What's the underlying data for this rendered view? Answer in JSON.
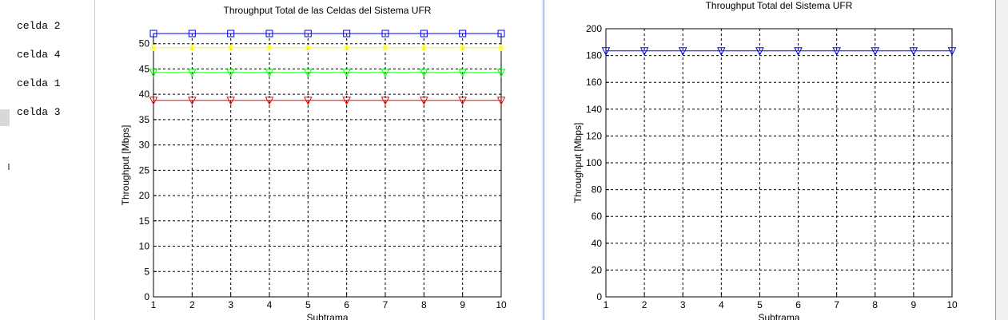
{
  "cell_list": [
    "celda 2",
    "celda 4",
    "celda 1",
    "celda 3"
  ],
  "chart_data": [
    {
      "type": "line",
      "title": "Throughput Total de las Celdas del Sistema UFR",
      "xlabel": "Subtrama",
      "ylabel": "Throughput [Mbps]",
      "x": [
        1,
        2,
        3,
        4,
        5,
        6,
        7,
        8,
        9,
        10
      ],
      "xlim": [
        1,
        10
      ],
      "ylim": [
        0,
        52
      ],
      "xticks": [
        1,
        2,
        3,
        4,
        5,
        6,
        7,
        8,
        9,
        10
      ],
      "yticks": [
        0,
        5,
        10,
        15,
        20,
        25,
        30,
        35,
        40,
        45,
        50
      ],
      "grid": true,
      "series": [
        {
          "color": "#0000ff",
          "marker": "square",
          "values": [
            52,
            52,
            52,
            52,
            52,
            52,
            52,
            52,
            52,
            52
          ]
        },
        {
          "color": "#ffff00",
          "marker": "star",
          "values": [
            49.2,
            49.2,
            49.2,
            49.2,
            49.2,
            49.2,
            49.2,
            49.2,
            49.2,
            49.2
          ]
        },
        {
          "color": "#00ff00",
          "marker": "triangle-down",
          "values": [
            44.3,
            44.3,
            44.3,
            44.3,
            44.3,
            44.3,
            44.3,
            44.3,
            44.3,
            44.3
          ]
        },
        {
          "color": "#ff0000",
          "marker": "triangle-down",
          "values": [
            38.8,
            38.8,
            38.8,
            38.8,
            38.8,
            38.8,
            38.8,
            38.8,
            38.8,
            38.8
          ]
        }
      ]
    },
    {
      "type": "line",
      "title": "Throughput Total del Sistema UFR",
      "xlabel": "Subtrama",
      "ylabel": "Throughput [Mbps]",
      "x": [
        1,
        2,
        3,
        4,
        5,
        6,
        7,
        8,
        9,
        10
      ],
      "xlim": [
        1,
        10
      ],
      "ylim": [
        0,
        200
      ],
      "xticks": [
        1,
        2,
        3,
        4,
        5,
        6,
        7,
        8,
        9,
        10
      ],
      "yticks": [
        0,
        20,
        40,
        60,
        80,
        100,
        120,
        140,
        160,
        180,
        200
      ],
      "grid": true,
      "series": [
        {
          "color": "#0000ff",
          "marker": "triangle-down",
          "values": [
            183.5,
            183.5,
            183.5,
            183.5,
            183.5,
            183.5,
            183.5,
            183.5,
            183.5,
            183.5
          ]
        }
      ]
    }
  ]
}
